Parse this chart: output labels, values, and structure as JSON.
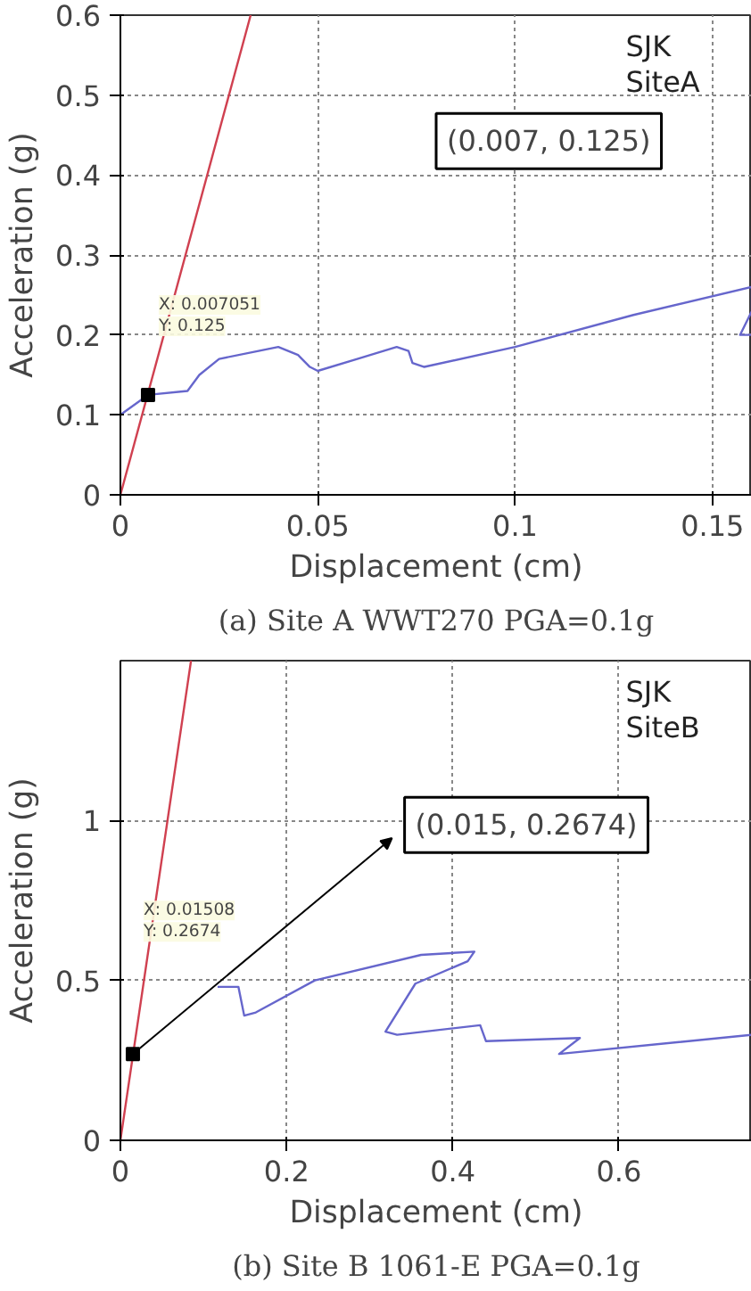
{
  "chart_data": [
    {
      "type": "line",
      "title": "(a) Site A WWT270 PGA=0.1g",
      "xlabel": "Displacement (cm)",
      "ylabel": "Acceleration (g)",
      "xlim": [
        0,
        0.16
      ],
      "ylim": [
        0,
        0.6
      ],
      "xticks": [
        0,
        0.05,
        0.1,
        0.15
      ],
      "yticks": [
        0,
        0.1,
        0.2,
        0.3,
        0.4,
        0.5,
        0.6
      ],
      "grid": true,
      "series": [
        {
          "color": "#d04050",
          "x": [
            0,
            0.033
          ],
          "values": [
            0,
            0.6
          ]
        },
        {
          "color": "#6666cc",
          "x": [
            0,
            0.007,
            0.017,
            0.02,
            0.025,
            0.035,
            0.04,
            0.045,
            0.048,
            0.05,
            0.06,
            0.07,
            0.073,
            0.074,
            0.077,
            0.1,
            0.13,
            0.16,
            0.16,
            0.157,
            0.16
          ],
          "values": [
            0.1,
            0.125,
            0.13,
            0.15,
            0.17,
            0.18,
            0.185,
            0.175,
            0.16,
            0.155,
            0.17,
            0.185,
            0.18,
            0.165,
            0.16,
            0.185,
            0.225,
            0.26,
            0.23,
            0.2,
            0.2
          ]
        },
        {
          "type": "scatter",
          "marker": "square",
          "color": "#000000",
          "x": [
            0.007
          ],
          "values": [
            0.125
          ]
        }
      ],
      "annotations": [
        "SJK",
        "SiteA",
        "(0.007, 0.125)",
        "X: 0.007051",
        "Y: 0.125"
      ]
    },
    {
      "type": "line",
      "title": "(b) Site B 1061-E PGA=0.1g",
      "xlabel": "Displacement (cm)",
      "ylabel": "Acceleration (g)",
      "xlim": [
        0,
        0.76
      ],
      "ylim": [
        0,
        1.5
      ],
      "xticks": [
        0,
        0.2,
        0.4,
        0.6
      ],
      "yticks": [
        0,
        0.5,
        1
      ],
      "grid": true,
      "series": [
        {
          "color": "#d04050",
          "x": [
            0,
            0.085
          ],
          "values": [
            0,
            1.5
          ]
        },
        {
          "color": "#6666cc",
          "x": [
            0.117,
            0.142,
            0.149,
            0.163,
            0.234,
            0.362,
            0.426,
            0.418,
            0.355,
            0.319,
            0.333,
            0.433,
            0.44,
            0.553,
            0.528,
            0.76
          ],
          "values": [
            0.48,
            0.48,
            0.39,
            0.4,
            0.5,
            0.58,
            0.59,
            0.56,
            0.49,
            0.34,
            0.33,
            0.36,
            0.31,
            0.32,
            0.27,
            0.33
          ]
        },
        {
          "type": "scatter",
          "marker": "square",
          "color": "#000000",
          "x": [
            0.015
          ],
          "values": [
            0.27
          ]
        }
      ],
      "annotations": [
        "SJK",
        "SiteB",
        "(0.015, 0.2674)",
        "X: 0.01508",
        "Y: 0.2674"
      ]
    }
  ]
}
